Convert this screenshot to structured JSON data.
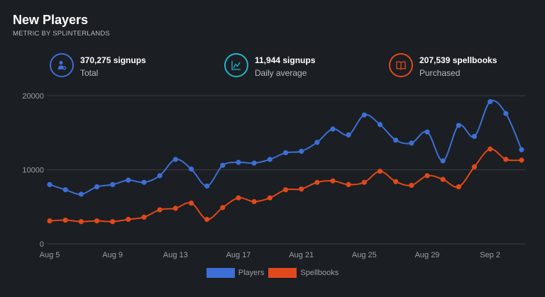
{
  "header": {
    "title": "New Players",
    "subtitle": "METRIC BY SPLINTERLANDS"
  },
  "stats": [
    {
      "value": "370,275 signups",
      "caption": "Total",
      "icon": "user-plus-icon",
      "color": "#3d6fd6"
    },
    {
      "value": "11,944 signups",
      "caption": "Daily average",
      "icon": "line-chart-icon",
      "color": "#1fb5c9"
    },
    {
      "value": "207,539 spellbooks",
      "caption": "Purchased",
      "icon": "book-icon",
      "color": "#e0491b"
    }
  ],
  "chart_data": {
    "type": "line",
    "x": [
      "Aug 5",
      "Aug 6",
      "Aug 7",
      "Aug 8",
      "Aug 9",
      "Aug 10",
      "Aug 11",
      "Aug 12",
      "Aug 13",
      "Aug 14",
      "Aug 15",
      "Aug 16",
      "Aug 17",
      "Aug 18",
      "Aug 19",
      "Aug 20",
      "Aug 21",
      "Aug 22",
      "Aug 23",
      "Aug 24",
      "Aug 25",
      "Aug 26",
      "Aug 27",
      "Aug 28",
      "Aug 29",
      "Aug 30",
      "Aug 31",
      "Sep 1",
      "Sep 2",
      "Sep 3",
      "Sep 4"
    ],
    "x_ticks": [
      "Aug 5",
      "Aug 9",
      "Aug 13",
      "Aug 17",
      "Aug 21",
      "Aug 25",
      "Aug 29",
      "Sep 2"
    ],
    "y_ticks": [
      "0",
      "10000",
      "20000"
    ],
    "ylim": [
      0,
      20000
    ],
    "series": [
      {
        "name": "Players",
        "color": "#3d6fd6",
        "values": [
          8000,
          7300,
          6700,
          7700,
          8000,
          8600,
          8300,
          9200,
          11400,
          10100,
          7800,
          10600,
          11000,
          10900,
          11400,
          12300,
          12500,
          13700,
          15500,
          14700,
          17400,
          16100,
          14000,
          13600,
          15100,
          11200,
          16000,
          14500,
          19200,
          17600,
          12700
        ]
      },
      {
        "name": "Spellbooks",
        "color": "#e0491b",
        "values": [
          3100,
          3200,
          3000,
          3100,
          3000,
          3300,
          3600,
          4600,
          4800,
          5500,
          3300,
          4900,
          6200,
          5700,
          6200,
          7300,
          7400,
          8300,
          8500,
          8000,
          8300,
          9800,
          8400,
          7900,
          9200,
          8700,
          7700,
          10400,
          12800,
          11400,
          11300
        ]
      }
    ],
    "grid": true,
    "legend_position": "bottom-center"
  },
  "colors": {
    "background": "#1b1e22",
    "grid": "#3a3f45",
    "axis_text": "#9aa0a6"
  }
}
